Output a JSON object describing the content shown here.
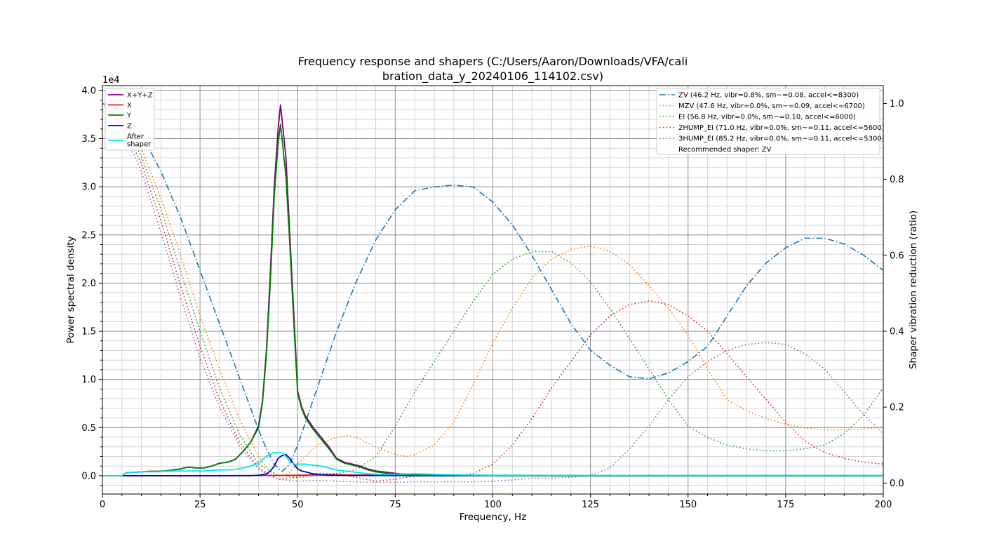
{
  "chart_data": {
    "type": "line",
    "title": "Frequency response and shapers (C:/Users/Aaron/Downloads/VFA/cali",
    "title_line2": "bration_data_y_20240106_114102.csv)",
    "xlabel": "Frequency, Hz",
    "ylabel": "Power spectral density",
    "y2label": "Shaper vibration reduction (ratio)",
    "y_offset_label": "1e4",
    "xlim": [
      0,
      200
    ],
    "ylim": [
      -0.19,
      4.05
    ],
    "y2lim": [
      -0.029,
      1.047
    ],
    "x_ticks": [
      0,
      25,
      50,
      75,
      100,
      125,
      150,
      175,
      200
    ],
    "x_tick_labels": [
      "0",
      "25",
      "50",
      "75",
      "100",
      "125",
      "150",
      "175",
      "200"
    ],
    "y_ticks": [
      0,
      0.5,
      1.0,
      1.5,
      2.0,
      2.5,
      3.0,
      3.5,
      4.0
    ],
    "y_tick_labels": [
      "0.0",
      "0.5",
      "1.0",
      "1.5",
      "2.0",
      "2.5",
      "3.0",
      "3.5",
      "4.0"
    ],
    "y2_ticks": [
      0,
      0.2,
      0.4,
      0.6,
      0.8,
      1.0
    ],
    "y2_tick_labels": [
      "0.0",
      "0.2",
      "0.4",
      "0.6",
      "0.8",
      "1.0"
    ],
    "grid": true,
    "legend_left": "top-left",
    "legend_right": "top-right",
    "psd_series": [
      {
        "name": "X+Y+Z",
        "color": "#800080",
        "style": "solid",
        "x": [
          0,
          5,
          6,
          8,
          10,
          12,
          14,
          16,
          18,
          20,
          22,
          24,
          26,
          28,
          30,
          32,
          34,
          36,
          38,
          40,
          41,
          42,
          43,
          44,
          45,
          45.6,
          46,
          47,
          48,
          49,
          50,
          51,
          52,
          54,
          56,
          58,
          60,
          62,
          64,
          66,
          68,
          70,
          72,
          74,
          76,
          80,
          90,
          100,
          120,
          150,
          200
        ],
        "y": [
          0,
          0,
          0.03,
          0.035,
          0.04,
          0.045,
          0.045,
          0.05,
          0.06,
          0.07,
          0.09,
          0.08,
          0.08,
          0.1,
          0.13,
          0.14,
          0.17,
          0.25,
          0.35,
          0.52,
          0.78,
          1.3,
          2.1,
          3.0,
          3.6,
          3.85,
          3.7,
          3.3,
          2.5,
          1.7,
          0.88,
          0.72,
          0.62,
          0.5,
          0.4,
          0.3,
          0.18,
          0.14,
          0.12,
          0.1,
          0.07,
          0.05,
          0.04,
          0.03,
          0.02,
          0.01,
          0.005,
          0.003,
          0.002,
          0.001,
          0.001
        ]
      },
      {
        "name": "X",
        "color": "#d62020",
        "style": "solid",
        "x": [
          0,
          20,
          40,
          45,
          50,
          55,
          60,
          70,
          100,
          150,
          200
        ],
        "y": [
          0,
          0,
          0.002,
          0.003,
          0.005,
          0.01,
          0.01,
          0.005,
          0.002,
          0.001,
          0.001
        ]
      },
      {
        "name": "Y",
        "color": "#008000",
        "style": "solid",
        "x": [
          0,
          5,
          6,
          8,
          10,
          12,
          14,
          16,
          18,
          20,
          22,
          24,
          26,
          28,
          30,
          32,
          34,
          36,
          38,
          40,
          41,
          42,
          43,
          44,
          45,
          45.6,
          46,
          47,
          48,
          49,
          50,
          51,
          52,
          54,
          56,
          58,
          60,
          62,
          64,
          66,
          68,
          70,
          72,
          74,
          76,
          80,
          90,
          100,
          120,
          150,
          200
        ],
        "y": [
          0,
          0,
          0.03,
          0.035,
          0.04,
          0.045,
          0.045,
          0.05,
          0.06,
          0.07,
          0.09,
          0.08,
          0.08,
          0.1,
          0.13,
          0.14,
          0.17,
          0.25,
          0.35,
          0.5,
          0.76,
          1.25,
          2.0,
          2.9,
          3.45,
          3.65,
          3.5,
          3.1,
          2.4,
          1.6,
          0.85,
          0.7,
          0.6,
          0.48,
          0.38,
          0.28,
          0.17,
          0.13,
          0.11,
          0.09,
          0.06,
          0.04,
          0.03,
          0.02,
          0.015,
          0.008,
          0.004,
          0.002,
          0.001,
          0.001,
          0.001
        ]
      },
      {
        "name": "Z",
        "color": "#0000cd",
        "style": "solid",
        "x": [
          0,
          38,
          40,
          42,
          43,
          44,
          45,
          46,
          47,
          48,
          49,
          50,
          51,
          52,
          54,
          56,
          58,
          60,
          65,
          70,
          80,
          100,
          150,
          200
        ],
        "y": [
          0,
          0,
          0.005,
          0.02,
          0.05,
          0.1,
          0.18,
          0.21,
          0.22,
          0.18,
          0.12,
          0.07,
          0.05,
          0.04,
          0.02,
          0.01,
          0.005,
          0.003,
          0.002,
          0.002,
          0.001,
          0.001,
          0.001,
          0.001
        ]
      },
      {
        "name": "After\nshaper",
        "color": "#00e5ee",
        "style": "solid",
        "x": [
          0,
          5,
          6,
          8,
          10,
          12,
          14,
          16,
          18,
          20,
          22,
          24,
          26,
          28,
          30,
          32,
          34,
          36,
          38,
          40,
          42,
          43,
          44,
          45,
          46,
          47,
          48,
          49,
          50,
          52,
          54,
          56,
          58,
          60,
          62,
          64,
          66,
          68,
          70,
          72,
          75,
          80,
          85,
          90,
          100,
          150,
          200
        ],
        "y": [
          0,
          0,
          0.03,
          0.035,
          0.04,
          0.04,
          0.04,
          0.045,
          0.05,
          0.05,
          0.05,
          0.05,
          0.05,
          0.055,
          0.06,
          0.06,
          0.065,
          0.08,
          0.1,
          0.13,
          0.2,
          0.22,
          0.24,
          0.24,
          0.24,
          0.2,
          0.15,
          0.12,
          0.12,
          0.12,
          0.11,
          0.1,
          0.08,
          0.06,
          0.05,
          0.04,
          0.03,
          0.02,
          0.015,
          0.015,
          0.015,
          0.02,
          0.015,
          0.01,
          0.005,
          0.003,
          0.003
        ]
      }
    ],
    "shaper_series": [
      {
        "name": "ZV (46.2 Hz, vibr=0.8%, sm~=0.08, accel<=8300)",
        "color": "#1f77b4",
        "style": "dashdot",
        "x": [
          0,
          5,
          10,
          15,
          20,
          25,
          30,
          35,
          40,
          42,
          44,
          46,
          48,
          50,
          55,
          60,
          65,
          70,
          75,
          80,
          85,
          90,
          95,
          100,
          105,
          110,
          115,
          120,
          125,
          130,
          135,
          140,
          145,
          150,
          155,
          160,
          165,
          170,
          175,
          180,
          185,
          190,
          195,
          200
        ],
        "y": [
          1.0,
          0.98,
          0.92,
          0.82,
          0.7,
          0.56,
          0.42,
          0.28,
          0.14,
          0.09,
          0.05,
          0.03,
          0.05,
          0.1,
          0.25,
          0.4,
          0.53,
          0.64,
          0.72,
          0.77,
          0.78,
          0.785,
          0.78,
          0.74,
          0.68,
          0.6,
          0.51,
          0.42,
          0.35,
          0.31,
          0.28,
          0.275,
          0.29,
          0.32,
          0.36,
          0.44,
          0.52,
          0.58,
          0.62,
          0.645,
          0.645,
          0.63,
          0.6,
          0.56
        ]
      },
      {
        "name": "MZV (47.6 Hz, vibr=0.0%, sm~=0.09, accel<=6700)",
        "color": "#ff7f0e",
        "style": "dotted",
        "x": [
          0,
          5,
          10,
          15,
          20,
          25,
          30,
          35,
          40,
          43,
          45,
          47,
          50,
          55,
          60,
          63,
          65,
          70,
          75,
          78,
          80,
          85,
          90,
          95,
          100,
          105,
          110,
          115,
          120,
          125,
          130,
          135,
          140,
          145,
          150,
          155,
          160,
          165,
          170,
          175,
          180,
          185,
          190,
          195,
          200
        ],
        "y": [
          1.0,
          0.97,
          0.88,
          0.75,
          0.6,
          0.44,
          0.3,
          0.17,
          0.07,
          0.03,
          0.02,
          0.02,
          0.05,
          0.1,
          0.12,
          0.125,
          0.12,
          0.095,
          0.075,
          0.07,
          0.075,
          0.1,
          0.16,
          0.26,
          0.37,
          0.46,
          0.54,
          0.59,
          0.615,
          0.625,
          0.61,
          0.575,
          0.52,
          0.46,
          0.39,
          0.3,
          0.22,
          0.19,
          0.17,
          0.155,
          0.145,
          0.14,
          0.14,
          0.142,
          0.148
        ]
      },
      {
        "name": "EI (56.8 Hz, vibr=0.0%, sm~=0.10, accel<=6000)",
        "color": "#2ca02c",
        "style": "dotted",
        "x": [
          0,
          5,
          10,
          15,
          20,
          25,
          30,
          35,
          40,
          45,
          50,
          55,
          60,
          65,
          70,
          75,
          80,
          85,
          90,
          95,
          100,
          105,
          110,
          115,
          120,
          125,
          130,
          135,
          140,
          145,
          150,
          155,
          160,
          165,
          170,
          175,
          180,
          185,
          190,
          195,
          200
        ],
        "y": [
          1.0,
          0.96,
          0.86,
          0.72,
          0.56,
          0.4,
          0.25,
          0.13,
          0.05,
          0.02,
          0.015,
          0.02,
          0.025,
          0.035,
          0.07,
          0.15,
          0.24,
          0.32,
          0.4,
          0.48,
          0.55,
          0.59,
          0.61,
          0.61,
          0.58,
          0.53,
          0.46,
          0.38,
          0.3,
          0.22,
          0.15,
          0.12,
          0.1,
          0.09,
          0.085,
          0.085,
          0.09,
          0.1,
          0.13,
          0.18,
          0.25
        ]
      },
      {
        "name": "2HUMP_EI (71.0 Hz, vibr=0.0%, sm~=0.11, accel<=5600)",
        "color": "#d62728",
        "style": "dotted",
        "x": [
          0,
          5,
          10,
          15,
          20,
          25,
          30,
          35,
          40,
          45,
          50,
          55,
          60,
          65,
          70,
          75,
          80,
          85,
          90,
          95,
          100,
          105,
          110,
          115,
          120,
          125,
          130,
          135,
          140,
          145,
          150,
          155,
          160,
          165,
          170,
          175,
          180,
          185,
          190,
          195,
          200
        ],
        "y": [
          1.0,
          0.95,
          0.84,
          0.69,
          0.52,
          0.36,
          0.22,
          0.11,
          0.04,
          0.01,
          0.015,
          0.025,
          0.025,
          0.015,
          0.005,
          0.01,
          0.018,
          0.02,
          0.018,
          0.025,
          0.05,
          0.1,
          0.17,
          0.25,
          0.32,
          0.39,
          0.44,
          0.47,
          0.48,
          0.47,
          0.44,
          0.4,
          0.34,
          0.28,
          0.22,
          0.16,
          0.11,
          0.08,
          0.065,
          0.055,
          0.05
        ]
      },
      {
        "name": "3HUMP_EI (85.2 Hz, vibr=0.0%, sm~=0.11, accel<=5300)",
        "color": "#9467bd",
        "style": "dotted",
        "x": [
          0,
          5,
          10,
          15,
          20,
          25,
          30,
          35,
          40,
          45,
          50,
          55,
          60,
          65,
          70,
          75,
          80,
          85,
          90,
          95,
          100,
          105,
          110,
          115,
          120,
          125,
          130,
          135,
          140,
          145,
          150,
          155,
          160,
          165,
          170,
          175,
          180,
          185,
          190,
          195,
          200
        ],
        "y": [
          1.0,
          0.94,
          0.82,
          0.66,
          0.49,
          0.33,
          0.2,
          0.1,
          0.035,
          0.01,
          0.005,
          0.007,
          0.005,
          0.003,
          0.002,
          0.002,
          0.003,
          0.003,
          0.003,
          0.003,
          0.005,
          0.008,
          0.013,
          0.013,
          0.015,
          0.02,
          0.04,
          0.09,
          0.15,
          0.22,
          0.28,
          0.32,
          0.35,
          0.365,
          0.37,
          0.365,
          0.34,
          0.3,
          0.24,
          0.18,
          0.13
        ]
      }
    ],
    "recommended_text": "Recommended shaper: ZV"
  }
}
